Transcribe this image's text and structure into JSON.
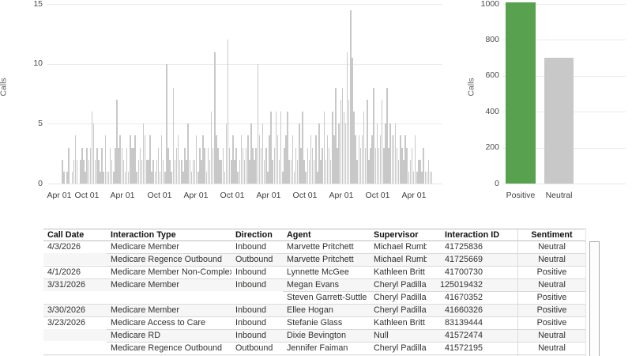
{
  "chart_data": [
    {
      "type": "bar",
      "name": "calls-over-time",
      "ylabel": "Calls",
      "yticks": [
        0,
        5,
        10,
        15
      ],
      "ylim": [
        0,
        15.3
      ],
      "grid": true,
      "bar_color": "#c9c8c8",
      "xticks": [
        "Apr 01",
        "Oct 01",
        "Apr 01",
        "Oct 01",
        "Apr 01",
        "Oct 01",
        "Apr 01",
        "Oct 01",
        "Apr 01",
        "Oct 01",
        "Apr 01"
      ],
      "values": [
        2,
        1,
        0,
        1,
        3,
        0,
        1,
        2,
        4,
        2,
        0,
        2,
        3,
        2,
        1,
        3,
        2,
        3,
        6,
        5,
        2,
        3,
        2,
        1,
        3,
        1,
        4,
        1,
        1,
        3,
        2,
        1,
        3,
        7,
        3,
        4,
        3,
        2,
        1,
        3,
        1,
        4,
        3,
        3,
        4,
        1,
        2,
        3,
        2,
        5,
        4,
        2,
        2,
        4,
        1,
        2,
        1,
        2,
        3,
        1,
        4,
        2,
        1,
        10,
        3,
        2,
        1,
        8,
        2,
        3,
        4,
        2,
        2,
        1,
        3,
        2,
        5,
        2,
        1,
        2,
        2,
        4,
        1,
        3,
        2,
        4,
        3,
        1,
        3,
        2,
        6,
        3,
        11,
        4,
        3,
        2,
        2,
        3,
        1,
        5,
        12,
        3,
        2,
        4,
        2,
        3,
        1,
        2,
        4,
        3,
        2,
        3,
        4,
        2,
        5,
        3,
        2,
        3,
        10,
        4,
        3,
        5,
        2,
        3,
        1,
        4,
        6,
        2,
        3,
        6,
        4,
        2,
        6,
        1,
        3,
        4,
        6,
        2,
        2,
        4,
        1,
        3,
        2,
        5,
        3,
        6,
        2,
        1,
        3,
        2,
        4,
        3,
        2,
        4,
        1,
        5,
        2,
        3,
        6,
        2,
        4,
        3,
        2,
        6,
        4,
        8,
        3,
        5,
        7,
        8,
        6,
        5,
        11,
        7,
        14.5,
        10.5,
        6,
        4,
        2,
        4,
        3,
        4,
        6,
        3,
        7,
        2,
        3,
        4,
        8,
        3,
        5,
        3,
        4,
        7,
        3,
        5,
        8,
        3,
        5,
        4,
        4,
        5,
        3,
        2,
        4,
        3,
        2,
        4,
        3,
        1,
        2,
        3,
        1,
        4,
        1,
        2,
        2,
        1,
        3,
        1,
        1,
        2,
        1,
        1
      ]
    },
    {
      "type": "bar",
      "name": "calls-by-sentiment",
      "ylabel": "Calls",
      "yticks": [
        0,
        200,
        400,
        600,
        800,
        1000
      ],
      "ylim": [
        0,
        1020
      ],
      "grid": true,
      "categories": [
        "Positive",
        "Neutral"
      ],
      "values": [
        1010,
        700
      ],
      "colors": [
        "#58a14e",
        "#c9c8c8"
      ]
    }
  ],
  "table": {
    "columns": [
      "Call Date",
      "Interaction Type",
      "Direction",
      "Agent",
      "Supervisor",
      "Interaction ID",
      "Sentiment"
    ],
    "rows": [
      {
        "sep": 0,
        "cells": [
          "4/3/2026",
          "Medicare Member",
          "Inbound",
          "Marvette Pritchett",
          "Michael Rumble",
          "41725836",
          "Neutral"
        ]
      },
      {
        "sep": 1,
        "cells": [
          "",
          "Medicare Regence Outbound",
          "Outbound",
          "Marvette Pritchett",
          "Michael Rumble",
          "41725669",
          "Neutral"
        ]
      },
      {
        "sep": 0,
        "cells": [
          "4/1/2026",
          "Medicare Member Non-Complex",
          "Inbound",
          "Lynnette McGee",
          "Kathleen Britt",
          "41700730",
          "Positive"
        ]
      },
      {
        "sep": 0,
        "cells": [
          "3/31/2026",
          "Medicare Member",
          "Inbound",
          "Megan Evans",
          "Cheryl Padilla",
          "125019432",
          "Neutral"
        ]
      },
      {
        "sep": 3,
        "cells": [
          "",
          "",
          "",
          "Steven Garrett-Suttle",
          "Cheryl Padilla",
          "41670352",
          "Positive"
        ]
      },
      {
        "sep": 0,
        "cells": [
          "3/30/2026",
          "Medicare Member",
          "Inbound",
          "Ellee Hogan",
          "Cheryl Padilla",
          "41660326",
          "Positive"
        ]
      },
      {
        "sep": 0,
        "cells": [
          "3/23/2026",
          "Medicare Access to Care",
          "Inbound",
          "Stefanie Glass",
          "Kathleen Britt",
          "83139444",
          "Positive"
        ]
      },
      {
        "sep": 1,
        "cells": [
          "",
          "Medicare RD",
          "Inbound",
          "Dixie Bevington",
          "Null",
          "41572474",
          "Neutral"
        ]
      },
      {
        "sep": 1,
        "cells": [
          "",
          "Medicare Regence Outbound",
          "Outbound",
          "Jennifer Faiman",
          "Cheryl Padilla",
          "41572195",
          "Neutral"
        ]
      }
    ]
  },
  "colors": {
    "positive": "#58a14e",
    "neutral": "#c9c8c8",
    "gridline": "#ebebeb",
    "row_band": "#f6f6f6"
  }
}
